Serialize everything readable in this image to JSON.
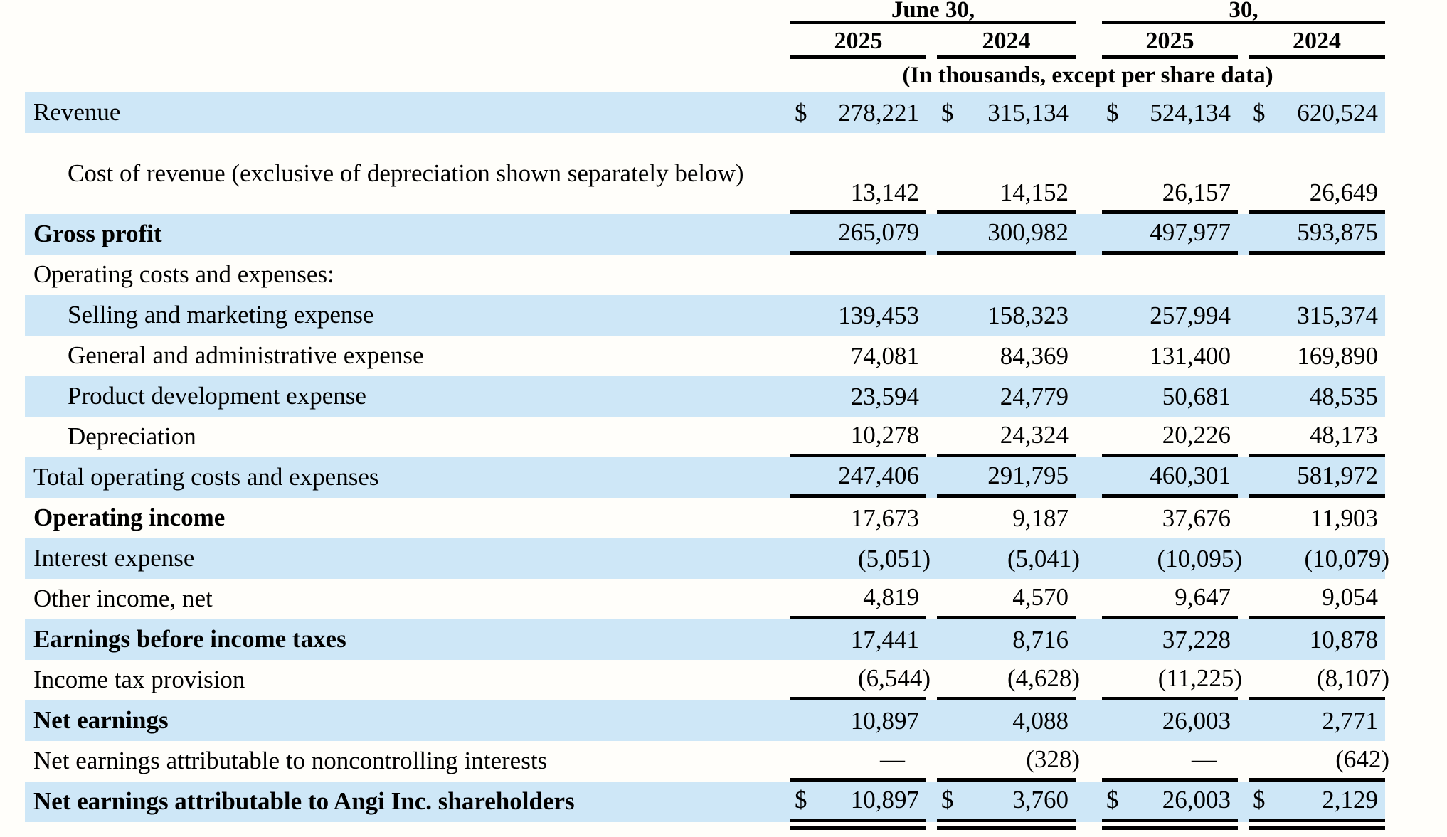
{
  "document": {
    "type": "income-statement-table",
    "company_reference": "Angi Inc.",
    "units_note": "(In thousands, except per share data)"
  },
  "header": {
    "period_group_1": "June 30,",
    "period_group_2": "30,",
    "years": [
      "2025",
      "2024",
      "2025",
      "2024"
    ]
  },
  "colors": {
    "row_highlight": "#cee7f7",
    "rule_color": "#000000",
    "text_color": "#000000",
    "page_background": "#fffefa"
  },
  "rows": [
    {
      "label": "Revenue",
      "indent": 0,
      "bold": false,
      "shaded": true,
      "dollar": true,
      "values": [
        "278,221",
        "315,134",
        "524,134",
        "620,524"
      ]
    },
    {
      "label": "Cost of revenue (exclusive of depreciation shown separately below)",
      "indent": 1,
      "bold": false,
      "shaded": false,
      "tall": true,
      "rule_below": true,
      "values": [
        "13,142",
        "14,152",
        "26,157",
        "26,649"
      ]
    },
    {
      "label": "Gross profit",
      "indent": 0,
      "bold": true,
      "shaded": true,
      "rule_below": true,
      "values": [
        "265,079",
        "300,982",
        "497,977",
        "593,875"
      ]
    },
    {
      "label": "Operating costs and expenses:",
      "indent": 0,
      "bold": false,
      "shaded": false,
      "values": null
    },
    {
      "label": "Selling and marketing expense",
      "indent": 1,
      "bold": false,
      "shaded": true,
      "values": [
        "139,453",
        "158,323",
        "257,994",
        "315,374"
      ]
    },
    {
      "label": "General and administrative expense",
      "indent": 1,
      "bold": false,
      "shaded": false,
      "values": [
        "74,081",
        "84,369",
        "131,400",
        "169,890"
      ]
    },
    {
      "label": "Product development expense",
      "indent": 1,
      "bold": false,
      "shaded": true,
      "values": [
        "23,594",
        "24,779",
        "50,681",
        "48,535"
      ]
    },
    {
      "label": "Depreciation",
      "indent": 1,
      "bold": false,
      "shaded": false,
      "rule_below": true,
      "values": [
        "10,278",
        "24,324",
        "20,226",
        "48,173"
      ]
    },
    {
      "label": "Total operating costs and expenses",
      "indent": 0,
      "bold": false,
      "shaded": true,
      "rule_below": true,
      "values": [
        "247,406",
        "291,795",
        "460,301",
        "581,972"
      ]
    },
    {
      "label": "Operating income",
      "indent": 0,
      "bold": true,
      "shaded": false,
      "values": [
        "17,673",
        "9,187",
        "37,676",
        "11,903"
      ]
    },
    {
      "label": "Interest expense",
      "indent": 0,
      "bold": false,
      "shaded": true,
      "values": [
        "(5,051)",
        "(5,041)",
        "(10,095)",
        "(10,079)"
      ]
    },
    {
      "label": "Other income, net",
      "indent": 0,
      "bold": false,
      "shaded": false,
      "rule_below": true,
      "values": [
        "4,819",
        "4,570",
        "9,647",
        "9,054"
      ]
    },
    {
      "label": "Earnings before income taxes",
      "indent": 0,
      "bold": true,
      "shaded": true,
      "values": [
        "17,441",
        "8,716",
        "37,228",
        "10,878"
      ]
    },
    {
      "label": "Income tax provision",
      "indent": 0,
      "bold": false,
      "shaded": false,
      "rule_below": true,
      "values": [
        "(6,544)",
        "(4,628)",
        "(11,225)",
        "(8,107)"
      ]
    },
    {
      "label": "Net earnings",
      "indent": 0,
      "bold": true,
      "shaded": true,
      "values": [
        "10,897",
        "4,088",
        "26,003",
        "2,771"
      ]
    },
    {
      "label": "Net earnings attributable to noncontrolling interests",
      "indent": 0,
      "bold": false,
      "shaded": false,
      "rule_below": true,
      "values": [
        "—",
        "(328)",
        "—",
        "(642)"
      ]
    },
    {
      "label": "Net earnings attributable to Angi Inc. shareholders",
      "indent": 0,
      "bold": true,
      "shaded": true,
      "dollar": true,
      "rule_below": true,
      "double_rule_below": true,
      "values": [
        "10,897",
        "3,760",
        "26,003",
        "2,129"
      ]
    }
  ]
}
